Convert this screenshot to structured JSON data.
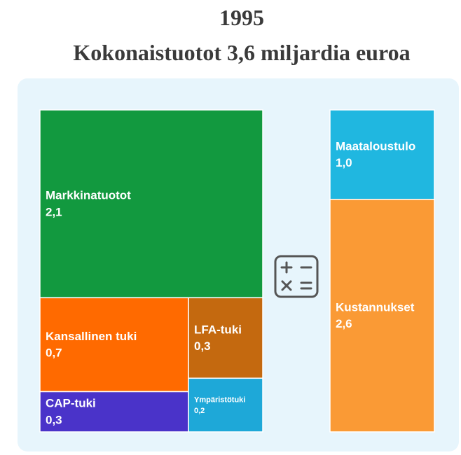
{
  "chart_data": [
    {
      "type": "treemap",
      "title": "1995",
      "subtitle": "Kokonaistuotot 3,6 miljardia euroa",
      "categories": [
        "Markkinatuotot",
        "Kansallinen tuki",
        "CAP-tuki",
        "LFA-tuki",
        "Ympäristötuki"
      ],
      "values": [
        2.1,
        0.7,
        0.3,
        0.3,
        0.2
      ],
      "value_labels": [
        "2,1",
        "0,7",
        "0,3",
        "0,3",
        "0,2"
      ],
      "colors": [
        "#12993f",
        "#ff6a00",
        "#4a33c9",
        "#c4690f",
        "#1ea8d8"
      ]
    },
    {
      "type": "stacked-column",
      "categories": [
        "Maataloustulo",
        "Kustannukset"
      ],
      "values": [
        1.0,
        2.6
      ],
      "value_labels": [
        "1,0",
        "2,6"
      ],
      "colors": [
        "#20b7e0",
        "#fa9a35"
      ]
    }
  ]
}
